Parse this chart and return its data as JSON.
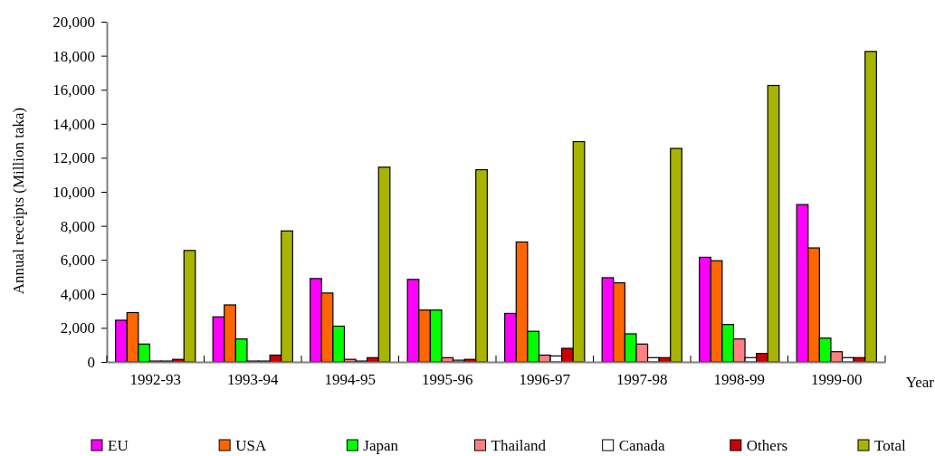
{
  "chart_data": {
    "type": "bar",
    "xlabel": "Year",
    "ylabel": "Annual receipts (Million taka)",
    "categories": [
      "1992-93",
      "1993-94",
      "1994-95",
      "1995-96",
      "1996-97",
      "1997-98",
      "1998-99",
      "1999-00"
    ],
    "series": [
      {
        "name": "EU",
        "color": "#ff00ff",
        "values": [
          2450,
          2650,
          4900,
          4850,
          2850,
          4950,
          6150,
          9250
        ]
      },
      {
        "name": "USA",
        "color": "#ff6600",
        "values": [
          2900,
          3350,
          4050,
          3050,
          7050,
          4650,
          5950,
          6700
        ]
      },
      {
        "name": "Japan",
        "color": "#00ff00",
        "values": [
          1050,
          1350,
          2100,
          3050,
          1800,
          1650,
          2200,
          1400
        ]
      },
      {
        "name": "Thailand",
        "color": "#ff8080",
        "values": [
          50,
          50,
          150,
          250,
          400,
          1050,
          1350,
          600
        ]
      },
      {
        "name": "Canada",
        "color": "#ffffff",
        "values": [
          50,
          50,
          50,
          100,
          350,
          250,
          250,
          250
        ]
      },
      {
        "name": "Others",
        "color": "#cc0000",
        "values": [
          150,
          400,
          250,
          150,
          800,
          250,
          500,
          250
        ]
      },
      {
        "name": "Total",
        "color": "#a8b400",
        "values": [
          6550,
          7700,
          11450,
          11300,
          12950,
          12550,
          16250,
          18250
        ]
      }
    ],
    "ylim": [
      0,
      20000
    ],
    "yticks": [
      0,
      {
        "value": 2000,
        "label": "2,000"
      },
      {
        "value": 4000,
        "label": "4,000"
      },
      {
        "value": 6000,
        "label": "6,000"
      },
      {
        "value": 8000,
        "label": "8,000"
      },
      {
        "value": 10000,
        "label": "10,000"
      },
      {
        "value": 12000,
        "label": "12,000"
      },
      {
        "value": 14000,
        "label": "14,000"
      },
      {
        "value": 16000,
        "label": "16,000"
      },
      {
        "value": 18000,
        "label": "18,000"
      },
      {
        "value": 20000,
        "label": "20,000"
      }
    ],
    "legend": "bottom"
  }
}
